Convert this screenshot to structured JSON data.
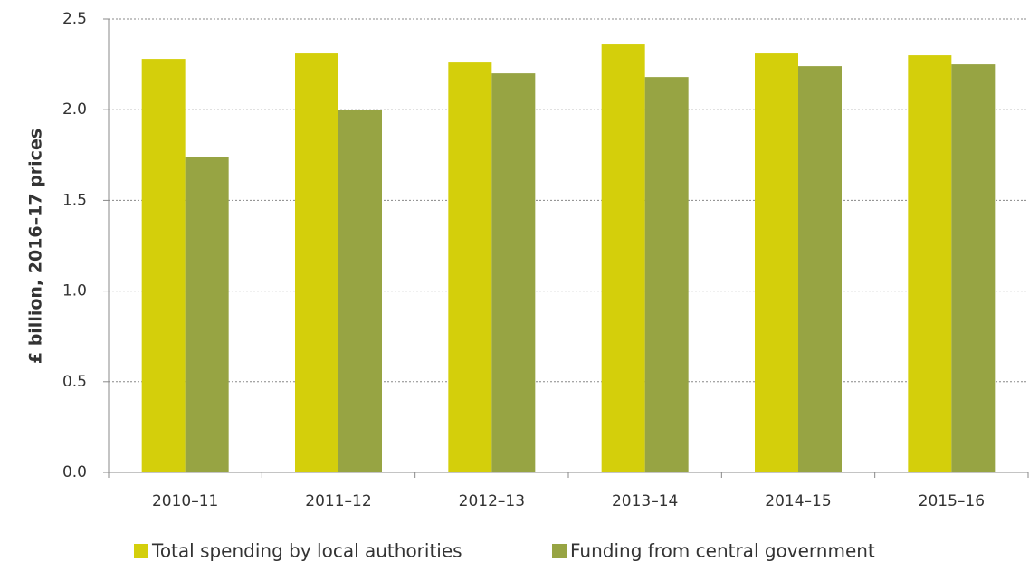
{
  "chart_data": {
    "type": "bar",
    "y_label": "£ billion, 2016–17 prices",
    "categories": [
      "2010–11",
      "2011–12",
      "2012–13",
      "2013–14",
      "2014–15",
      "2015–16"
    ],
    "series": [
      {
        "name": "Total spending by local authorities",
        "color": "#d4cf0b",
        "values": [
          2.28,
          2.31,
          2.26,
          2.36,
          2.31,
          2.3
        ]
      },
      {
        "name": "Funding from central government",
        "color": "#97a443",
        "values": [
          1.74,
          2.0,
          2.2,
          2.18,
          2.24,
          2.25
        ]
      }
    ],
    "ylim": [
      0,
      2.5
    ],
    "yticks": [
      {
        "value": 0,
        "label": "0.0"
      },
      {
        "value": 0.5,
        "label": "0.5"
      },
      {
        "value": 1,
        "label": "1.0"
      },
      {
        "value": 1.5,
        "label": "1.5"
      },
      {
        "value": 2,
        "label": "2.0"
      },
      {
        "value": 2.5,
        "label": "2.5"
      }
    ],
    "grid": true
  }
}
